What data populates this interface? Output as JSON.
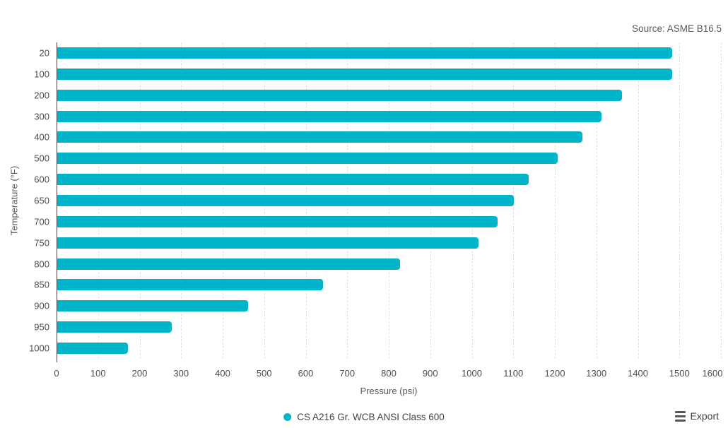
{
  "source_note": "Source: ASME B16.5",
  "legend": {
    "series_label": "CS A216 Gr. WCB ANSI Class 600"
  },
  "export": {
    "label": "Export"
  },
  "colors": {
    "series": "#00B4CA",
    "gridline": "#e2e2e2",
    "axis_line": "#424242",
    "tick_text": "#4d4d4d",
    "title_text": "#595959"
  },
  "chart_data": {
    "type": "bar",
    "orientation": "horizontal",
    "title": "",
    "xlabel": "Pressure (psi)",
    "ylabel": "Temperature (°F)",
    "categories": [
      "20",
      "100",
      "200",
      "300",
      "400",
      "500",
      "600",
      "650",
      "700",
      "750",
      "800",
      "850",
      "900",
      "950",
      "1000"
    ],
    "series": [
      {
        "name": "CS A216 Gr. WCB ANSI Class 600",
        "values": [
          1480,
          1480,
          1360,
          1310,
          1265,
          1205,
          1135,
          1100,
          1060,
          1015,
          825,
          640,
          460,
          275,
          170
        ]
      }
    ],
    "xlim": [
      0,
      1600
    ],
    "x_ticks": [
      0,
      100,
      200,
      300,
      400,
      500,
      600,
      700,
      800,
      900,
      1000,
      1100,
      1200,
      1300,
      1400,
      1500,
      1600
    ],
    "grid": "vertical-dashed",
    "legend_position": "bottom",
    "annotations": [
      "Source: ASME B16.5"
    ]
  }
}
